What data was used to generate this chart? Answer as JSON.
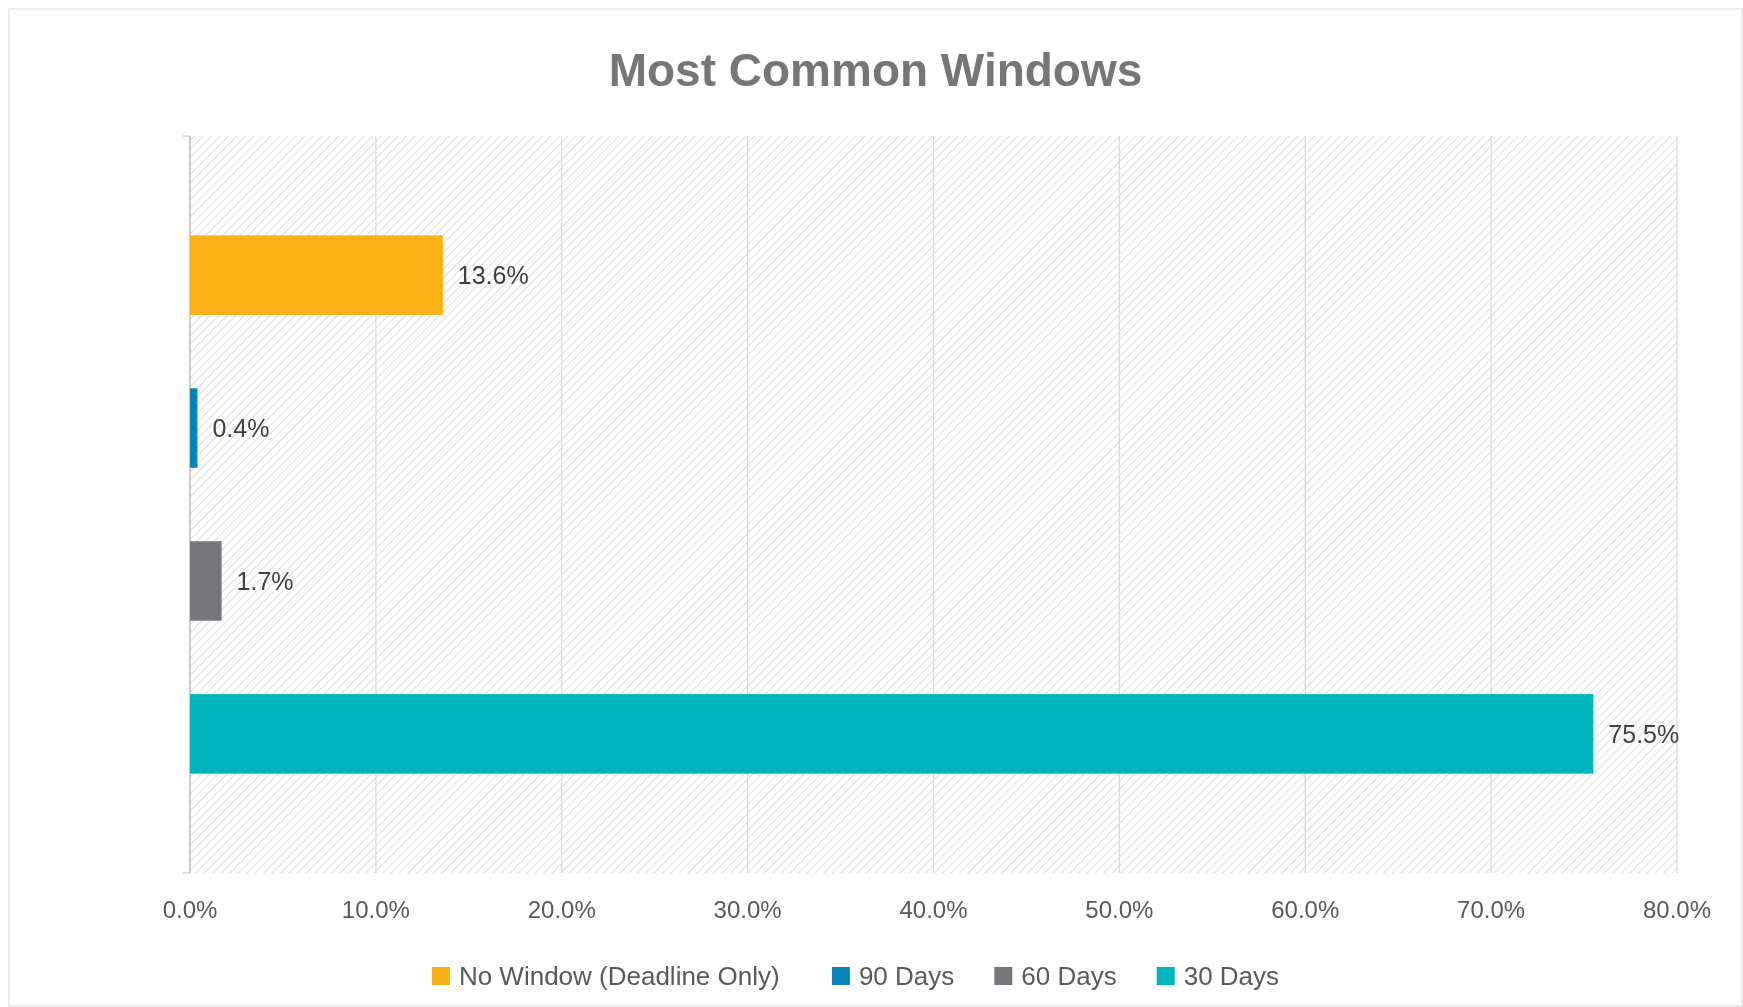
{
  "chart_data": {
    "type": "bar",
    "orientation": "horizontal",
    "title": "Most Common Windows",
    "categories": [
      null
    ],
    "series": [
      {
        "name": "No Window (Deadline Only)",
        "color": "#fbb116",
        "values": [
          13.6
        ],
        "value_labels": [
          "13.6%"
        ]
      },
      {
        "name": "90 Days",
        "color": "#0a84b8",
        "values": [
          0.4
        ],
        "value_labels": [
          "0.4%"
        ]
      },
      {
        "name": "60 Days",
        "color": "#75787b",
        "values": [
          1.7
        ],
        "value_labels": [
          "1.7%"
        ]
      },
      {
        "name": "30 Days",
        "color": "#00b5bd",
        "values": [
          75.5
        ],
        "value_labels": [
          "75.5%"
        ]
      }
    ],
    "xlim": [
      0,
      80
    ],
    "xticks": [
      {
        "value": 0,
        "label": "0.0%"
      },
      {
        "value": 10,
        "label": "10.0%"
      },
      {
        "value": 20,
        "label": "20.0%"
      },
      {
        "value": 30,
        "label": "30.0%"
      },
      {
        "value": 40,
        "label": "40.0%"
      },
      {
        "value": 50,
        "label": "50.0%"
      },
      {
        "value": 60,
        "label": "60.0%"
      },
      {
        "value": 70,
        "label": "70.0%"
      },
      {
        "value": 80,
        "label": "80.0%"
      }
    ],
    "grid": "x",
    "legend": "bottom"
  }
}
